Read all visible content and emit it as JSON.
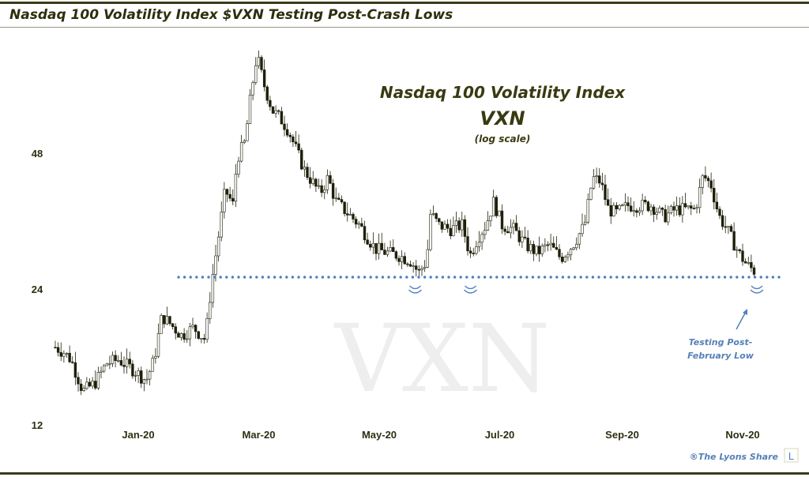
{
  "header": {
    "title": "Nasdaq 100 Volatility Index $VXN Testing Post-Crash Lows"
  },
  "colors": {
    "frame": "#3b3b1a",
    "candle": "#1f1f0a",
    "support": "#4f7fbf",
    "annotation": "#5580b8"
  },
  "chart_data": {
    "type": "candlestick",
    "title": "Nasdaq 100 Volatility Index",
    "subtitle": "VXN",
    "scale_note": "(log scale)",
    "watermark": "VXN",
    "y_scale": "log",
    "ylim": [
      11.5,
      88
    ],
    "y_ticks": [
      {
        "value": 12,
        "label": "12"
      },
      {
        "value": 24,
        "label": "24"
      },
      {
        "value": 48,
        "label": "48"
      }
    ],
    "x_unit": "days since 2020-01-01",
    "xlim": [
      -42,
      313
    ],
    "x_ticks": [
      {
        "day": 0,
        "label": "Jan-20"
      },
      {
        "day": 61,
        "label": "Mar-20"
      },
      {
        "day": 122,
        "label": "May-20"
      },
      {
        "day": 183,
        "label": "Jul-20"
      },
      {
        "day": 245,
        "label": "Sep-20"
      },
      {
        "day": 306,
        "label": "Nov-20"
      }
    ],
    "approx_closes": [
      [
        -42,
        17.9
      ],
      [
        -38,
        17.5
      ],
      [
        -34,
        16.8
      ],
      [
        -28,
        14.3
      ],
      [
        -22,
        14.9
      ],
      [
        -16,
        16.5
      ],
      [
        -10,
        16.8
      ],
      [
        -2,
        15.9
      ],
      [
        4,
        15.1
      ],
      [
        8,
        16.8
      ],
      [
        12,
        21.0
      ],
      [
        16,
        20.2
      ],
      [
        22,
        19.0
      ],
      [
        28,
        19.8
      ],
      [
        34,
        18.6
      ],
      [
        37,
        24.7
      ],
      [
        40,
        30.2
      ],
      [
        44,
        40.0
      ],
      [
        48,
        37.0
      ],
      [
        50,
        47.0
      ],
      [
        54,
        51.0
      ],
      [
        57,
        64.9
      ],
      [
        60,
        79.4
      ],
      [
        64,
        67.6
      ],
      [
        68,
        59.9
      ],
      [
        72,
        57.5
      ],
      [
        76,
        54.2
      ],
      [
        80,
        49.0
      ],
      [
        84,
        44.3
      ],
      [
        88,
        41.7
      ],
      [
        92,
        39.2
      ],
      [
        96,
        42.5
      ],
      [
        100,
        37.7
      ],
      [
        104,
        36.2
      ],
      [
        108,
        34.8
      ],
      [
        112,
        33.4
      ],
      [
        116,
        31.4
      ],
      [
        120,
        29.6
      ],
      [
        126,
        29.0
      ],
      [
        132,
        28.6
      ],
      [
        138,
        27.8
      ],
      [
        142,
        26.2
      ],
      [
        146,
        27.8
      ],
      [
        148,
        35.5
      ],
      [
        152,
        33.4
      ],
      [
        158,
        32.7
      ],
      [
        164,
        33.4
      ],
      [
        168,
        28.6
      ],
      [
        172,
        31.4
      ],
      [
        176,
        33.4
      ],
      [
        180,
        37.7
      ],
      [
        184,
        33.4
      ],
      [
        190,
        32.7
      ],
      [
        196,
        30.2
      ],
      [
        202,
        29.0
      ],
      [
        208,
        30.2
      ],
      [
        214,
        28.2
      ],
      [
        220,
        30.2
      ],
      [
        226,
        33.4
      ],
      [
        230,
        42.5
      ],
      [
        234,
        41.7
      ],
      [
        238,
        36.2
      ],
      [
        242,
        35.5
      ],
      [
        248,
        36.9
      ],
      [
        254,
        36.9
      ],
      [
        260,
        36.9
      ],
      [
        266,
        34.8
      ],
      [
        272,
        36.2
      ],
      [
        278,
        36.2
      ],
      [
        282,
        36.2
      ],
      [
        286,
        43.0
      ],
      [
        290,
        41.0
      ],
      [
        294,
        35.0
      ],
      [
        298,
        32.7
      ],
      [
        304,
        29.0
      ],
      [
        308,
        27.3
      ],
      [
        313,
        26.2
      ]
    ],
    "support_level": 25.6,
    "annotations": [
      {
        "text_line1": "Testing Post-",
        "text_line2": "February Low"
      }
    ],
    "tested_lows_days": [
      141,
      169,
      314
    ]
  },
  "footer": {
    "credit": "®The Lyons Share",
    "logo_letter": "L"
  }
}
